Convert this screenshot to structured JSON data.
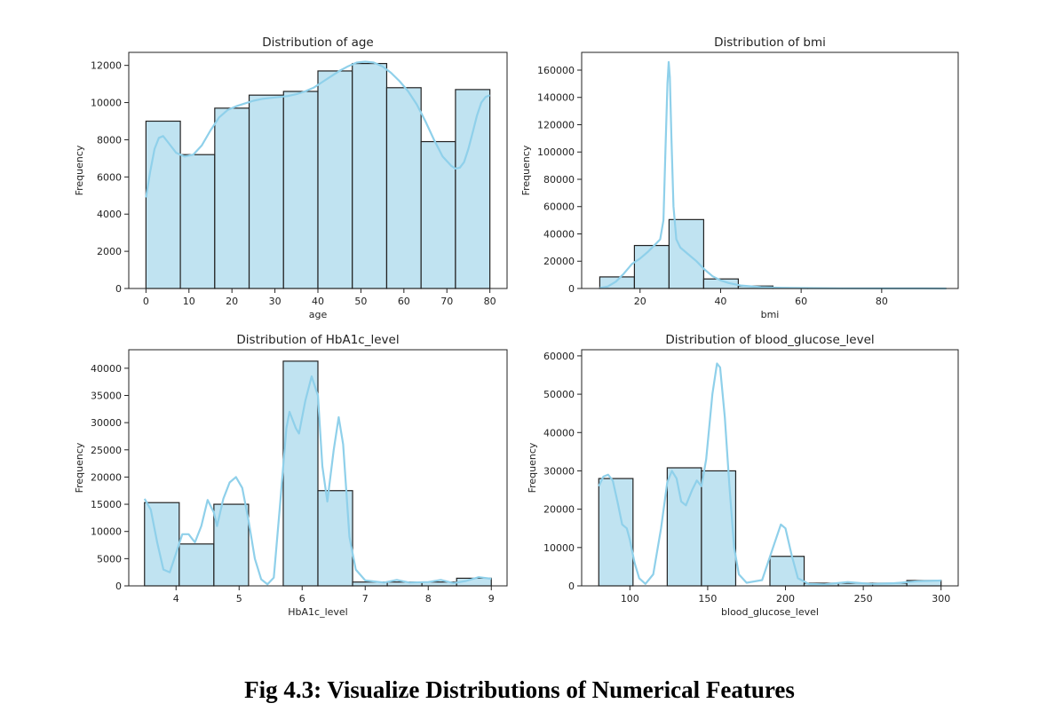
{
  "caption": "Fig 4.3: Visualize Distributions of Numerical Features",
  "colors": {
    "bar_fill": "#c0e3f1",
    "bar_edge": "#222222",
    "kde": "#8fd0ea"
  },
  "chart_data": [
    {
      "type": "bar",
      "title": "Distribution of age",
      "xlabel": "age",
      "ylabel": "Frequency",
      "xlim": [
        -4,
        84
      ],
      "ylim": [
        0,
        12700
      ],
      "xticks": [
        0,
        10,
        20,
        30,
        40,
        50,
        60,
        70,
        80
      ],
      "yticks": [
        0,
        2000,
        4000,
        6000,
        8000,
        10000,
        12000
      ],
      "bins": [
        {
          "x0": 0,
          "x1": 8,
          "value": 9000
        },
        {
          "x0": 8,
          "x1": 16,
          "value": 7200
        },
        {
          "x0": 16,
          "x1": 24,
          "value": 9700
        },
        {
          "x0": 24,
          "x1": 32,
          "value": 10400
        },
        {
          "x0": 32,
          "x1": 40,
          "value": 10600
        },
        {
          "x0": 40,
          "x1": 48,
          "value": 11700
        },
        {
          "x0": 48,
          "x1": 56,
          "value": 12100
        },
        {
          "x0": 56,
          "x1": 64,
          "value": 10800
        },
        {
          "x0": 64,
          "x1": 72,
          "value": 7900
        },
        {
          "x0": 72,
          "x1": 80,
          "value": 10700
        }
      ],
      "kde": [
        [
          0,
          4900
        ],
        [
          1,
          6300
        ],
        [
          2,
          7500
        ],
        [
          3,
          8100
        ],
        [
          4,
          8200
        ],
        [
          5,
          7900
        ],
        [
          7,
          7300
        ],
        [
          9,
          7100
        ],
        [
          11,
          7200
        ],
        [
          13,
          7700
        ],
        [
          15,
          8500
        ],
        [
          17,
          9200
        ],
        [
          19,
          9600
        ],
        [
          21,
          9800
        ],
        [
          23,
          9950
        ],
        [
          25,
          10100
        ],
        [
          27,
          10200
        ],
        [
          29,
          10250
        ],
        [
          31,
          10300
        ],
        [
          33,
          10350
        ],
        [
          35,
          10450
        ],
        [
          37,
          10600
        ],
        [
          39,
          10800
        ],
        [
          41,
          11100
        ],
        [
          43,
          11400
        ],
        [
          45,
          11700
        ],
        [
          47,
          11950
        ],
        [
          49,
          12150
        ],
        [
          51,
          12200
        ],
        [
          53,
          12150
        ],
        [
          55,
          11950
        ],
        [
          57,
          11600
        ],
        [
          59,
          11150
        ],
        [
          61,
          10600
        ],
        [
          63,
          9900
        ],
        [
          65,
          9000
        ],
        [
          67,
          8000
        ],
        [
          69,
          7100
        ],
        [
          71,
          6600
        ],
        [
          72,
          6450
        ],
        [
          73,
          6500
        ],
        [
          74,
          6800
        ],
        [
          75,
          7500
        ],
        [
          76,
          8400
        ],
        [
          77,
          9300
        ],
        [
          78,
          10000
        ],
        [
          79,
          10300
        ],
        [
          80,
          10400
        ]
      ]
    },
    {
      "type": "bar",
      "title": "Distribution of bmi",
      "xlabel": "bmi",
      "ylabel": "Frequency",
      "xlim": [
        5.5,
        99
      ],
      "ylim": [
        0,
        173000
      ],
      "xticks": [
        20,
        40,
        60,
        80
      ],
      "yticks": [
        0,
        20000,
        40000,
        60000,
        80000,
        100000,
        120000,
        140000,
        160000
      ],
      "bins": [
        {
          "x0": 10,
          "x1": 18.6,
          "value": 8500
        },
        {
          "x0": 18.6,
          "x1": 27.2,
          "value": 31500
        },
        {
          "x0": 27.2,
          "x1": 35.8,
          "value": 50500
        },
        {
          "x0": 35.8,
          "x1": 44.4,
          "value": 7000
        },
        {
          "x0": 44.4,
          "x1": 53,
          "value": 1800
        },
        {
          "x0": 53,
          "x1": 61.6,
          "value": 400
        },
        {
          "x0": 61.6,
          "x1": 70.2,
          "value": 150
        },
        {
          "x0": 70.2,
          "x1": 78.8,
          "value": 80
        },
        {
          "x0": 78.8,
          "x1": 87.4,
          "value": 40
        },
        {
          "x0": 87.4,
          "x1": 96,
          "value": 20
        }
      ],
      "kde": [
        [
          10,
          300
        ],
        [
          12,
          1500
        ],
        [
          14,
          5000
        ],
        [
          16,
          11000
        ],
        [
          18,
          18000
        ],
        [
          20,
          22000
        ],
        [
          22,
          27000
        ],
        [
          24,
          33000
        ],
        [
          25,
          36000
        ],
        [
          25.8,
          50000
        ],
        [
          26.3,
          100000
        ],
        [
          26.8,
          150000
        ],
        [
          27.1,
          166000
        ],
        [
          27.4,
          155000
        ],
        [
          27.8,
          110000
        ],
        [
          28.3,
          60000
        ],
        [
          29,
          36000
        ],
        [
          30,
          30000
        ],
        [
          32,
          25000
        ],
        [
          34,
          20000
        ],
        [
          36,
          14000
        ],
        [
          38,
          9000
        ],
        [
          40,
          6000
        ],
        [
          42,
          4000
        ],
        [
          45,
          2200
        ],
        [
          50,
          1000
        ],
        [
          55,
          500
        ],
        [
          60,
          300
        ],
        [
          70,
          150
        ],
        [
          80,
          80
        ],
        [
          90,
          40
        ],
        [
          96,
          20
        ]
      ]
    },
    {
      "type": "bar",
      "title": "Distribution of HbA1c_level",
      "xlabel": "HbA1c_level",
      "ylabel": "Frequency",
      "xlim": [
        3.25,
        9.25
      ],
      "ylim": [
        0,
        43400
      ],
      "xticks": [
        4,
        5,
        6,
        7,
        8,
        9
      ],
      "yticks": [
        0,
        5000,
        10000,
        15000,
        20000,
        25000,
        30000,
        35000,
        40000
      ],
      "bins": [
        {
          "x0": 3.5,
          "x1": 4.05,
          "value": 15300
        },
        {
          "x0": 4.05,
          "x1": 4.6,
          "value": 7700
        },
        {
          "x0": 4.6,
          "x1": 5.15,
          "value": 15000
        },
        {
          "x0": 5.15,
          "x1": 5.7,
          "value": 0
        },
        {
          "x0": 5.7,
          "x1": 6.25,
          "value": 41300
        },
        {
          "x0": 6.25,
          "x1": 6.8,
          "value": 17500
        },
        {
          "x0": 6.8,
          "x1": 7.35,
          "value": 700
        },
        {
          "x0": 7.35,
          "x1": 7.9,
          "value": 700
        },
        {
          "x0": 7.9,
          "x1": 8.45,
          "value": 700
        },
        {
          "x0": 8.45,
          "x1": 9.0,
          "value": 1400
        }
      ],
      "kde": [
        [
          3.5,
          16000
        ],
        [
          3.6,
          14000
        ],
        [
          3.7,
          8000
        ],
        [
          3.8,
          3000
        ],
        [
          3.9,
          2500
        ],
        [
          4.0,
          6000
        ],
        [
          4.1,
          9500
        ],
        [
          4.2,
          9500
        ],
        [
          4.3,
          8000
        ],
        [
          4.4,
          11000
        ],
        [
          4.5,
          15800
        ],
        [
          4.6,
          13500
        ],
        [
          4.65,
          11000
        ],
        [
          4.75,
          16000
        ],
        [
          4.85,
          19000
        ],
        [
          4.95,
          20000
        ],
        [
          5.05,
          18000
        ],
        [
          5.15,
          12000
        ],
        [
          5.25,
          5000
        ],
        [
          5.35,
          1200
        ],
        [
          5.45,
          300
        ],
        [
          5.55,
          1500
        ],
        [
          5.65,
          15000
        ],
        [
          5.75,
          29000
        ],
        [
          5.8,
          32000
        ],
        [
          5.9,
          29000
        ],
        [
          5.95,
          28000
        ],
        [
          6.05,
          34000
        ],
        [
          6.15,
          38500
        ],
        [
          6.25,
          35000
        ],
        [
          6.32,
          22000
        ],
        [
          6.4,
          15500
        ],
        [
          6.5,
          25000
        ],
        [
          6.58,
          31000
        ],
        [
          6.65,
          26000
        ],
        [
          6.75,
          9000
        ],
        [
          6.85,
          3000
        ],
        [
          7.0,
          1000
        ],
        [
          7.3,
          600
        ],
        [
          7.5,
          1100
        ],
        [
          7.7,
          600
        ],
        [
          8.0,
          700
        ],
        [
          8.2,
          1100
        ],
        [
          8.4,
          500
        ],
        [
          8.6,
          900
        ],
        [
          8.8,
          1600
        ],
        [
          9.0,
          1300
        ]
      ]
    },
    {
      "type": "bar",
      "title": "Distribution of blood_glucose_level",
      "xlabel": "blood_glucose_level",
      "ylabel": "Frequency",
      "xlim": [
        69,
        311
      ],
      "ylim": [
        0,
        61600
      ],
      "xticks": [
        100,
        150,
        200,
        250,
        300
      ],
      "yticks": [
        0,
        10000,
        20000,
        30000,
        40000,
        50000,
        60000
      ],
      "bins": [
        {
          "x0": 80,
          "x1": 102,
          "value": 28000
        },
        {
          "x0": 102,
          "x1": 124,
          "value": 0
        },
        {
          "x0": 124,
          "x1": 146,
          "value": 30800
        },
        {
          "x0": 146,
          "x1": 168,
          "value": 30000
        },
        {
          "x0": 168,
          "x1": 190,
          "value": 0
        },
        {
          "x0": 190,
          "x1": 212,
          "value": 7700
        },
        {
          "x0": 212,
          "x1": 234,
          "value": 700
        },
        {
          "x0": 234,
          "x1": 256,
          "value": 700
        },
        {
          "x0": 256,
          "x1": 278,
          "value": 700
        },
        {
          "x0": 278,
          "x1": 300,
          "value": 1400
        }
      ],
      "kde": [
        [
          80,
          26000
        ],
        [
          83,
          28500
        ],
        [
          86,
          29000
        ],
        [
          89,
          27500
        ],
        [
          92,
          22000
        ],
        [
          95,
          16000
        ],
        [
          98,
          15000
        ],
        [
          100,
          12000
        ],
        [
          103,
          6000
        ],
        [
          106,
          2000
        ],
        [
          110,
          500
        ],
        [
          115,
          3000
        ],
        [
          120,
          15000
        ],
        [
          124,
          27000
        ],
        [
          127,
          30000
        ],
        [
          130,
          28000
        ],
        [
          133,
          22000
        ],
        [
          136,
          21000
        ],
        [
          140,
          25000
        ],
        [
          143,
          27500
        ],
        [
          146,
          26000
        ],
        [
          149,
          33000
        ],
        [
          153,
          50000
        ],
        [
          156,
          58000
        ],
        [
          158,
          57000
        ],
        [
          161,
          44000
        ],
        [
          164,
          26000
        ],
        [
          167,
          10000
        ],
        [
          170,
          3000
        ],
        [
          175,
          800
        ],
        [
          185,
          1500
        ],
        [
          192,
          10000
        ],
        [
          197,
          16000
        ],
        [
          200,
          15000
        ],
        [
          204,
          8000
        ],
        [
          208,
          2000
        ],
        [
          215,
          500
        ],
        [
          225,
          400
        ],
        [
          240,
          1000
        ],
        [
          255,
          500
        ],
        [
          270,
          700
        ],
        [
          285,
          1200
        ],
        [
          300,
          1400
        ]
      ]
    }
  ]
}
